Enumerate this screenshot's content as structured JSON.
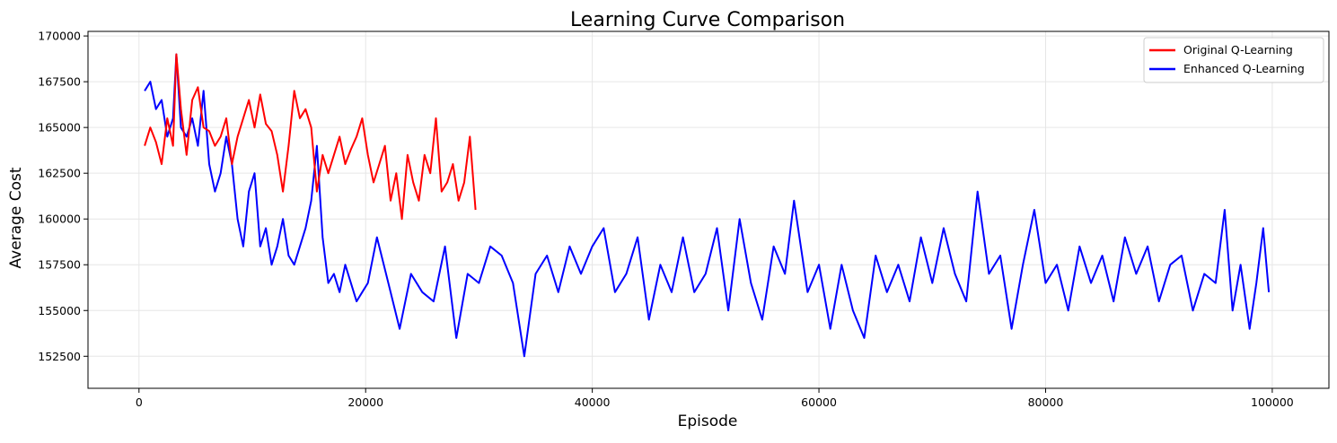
{
  "chart_data": {
    "type": "line",
    "title": "Learning Curve Comparison",
    "xlabel": "Episode",
    "ylabel": "Average Cost",
    "xlim": [
      -4500,
      105000
    ],
    "ylim": [
      150750,
      170250
    ],
    "xticks": [
      0,
      20000,
      40000,
      60000,
      80000,
      100000
    ],
    "xtick_labels": [
      "0",
      "20000",
      "40000",
      "60000",
      "80000",
      "100000"
    ],
    "yticks": [
      152500,
      155000,
      157500,
      160000,
      162500,
      165000,
      167500,
      170000
    ],
    "ytick_labels": [
      "152500",
      "155000",
      "157500",
      "160000",
      "162500",
      "165000",
      "167500",
      "170000"
    ],
    "grid": true,
    "legend_position": "top-right",
    "series": [
      {
        "name": "Original Q-Learning",
        "color": "#ff0000",
        "x": [
          500,
          1000,
          1500,
          2000,
          2500,
          3000,
          3300,
          3700,
          4200,
          4700,
          5200,
          5700,
          6200,
          6700,
          7200,
          7700,
          8200,
          8700,
          9200,
          9700,
          10200,
          10700,
          11200,
          11700,
          12200,
          12700,
          13200,
          13700,
          14200,
          14700,
          15200,
          15700,
          16200,
          16700,
          17200,
          17700,
          18200,
          18700,
          19200,
          19700,
          20200,
          20700,
          21200,
          21700,
          22200,
          22700,
          23200,
          23700,
          24200,
          24700,
          25200,
          25700,
          26200,
          26700,
          27200,
          27700,
          28200,
          28700,
          29200,
          29700
        ],
        "y": [
          164000,
          165000,
          164200,
          163000,
          165500,
          164000,
          169000,
          166000,
          163500,
          166500,
          167200,
          165000,
          164800,
          164000,
          164500,
          165500,
          163000,
          164500,
          165500,
          166500,
          165000,
          166800,
          165200,
          164800,
          163500,
          161500,
          164000,
          167000,
          165500,
          166000,
          165000,
          161500,
          163500,
          162500,
          163500,
          164500,
          163000,
          163800,
          164500,
          165500,
          163500,
          162000,
          163000,
          164000,
          161000,
          162500,
          160000,
          163500,
          162000,
          161000,
          163500,
          162500,
          165500,
          161500,
          162000,
          163000,
          161000,
          162000,
          164500,
          160500
        ]
      },
      {
        "name": "Enhanced Q-Learning",
        "color": "#0000ff",
        "x": [
          500,
          1000,
          1500,
          2000,
          2500,
          3000,
          3300,
          3700,
          4200,
          4700,
          5200,
          5700,
          6200,
          6700,
          7200,
          7700,
          8200,
          8700,
          9200,
          9700,
          10200,
          10700,
          11200,
          11700,
          12200,
          12700,
          13200,
          13700,
          14200,
          14700,
          15200,
          15700,
          16200,
          16700,
          17200,
          17700,
          18200,
          18700,
          19200,
          19700,
          20200,
          21000,
          22000,
          23000,
          24000,
          25000,
          26000,
          27000,
          28000,
          29000,
          30000,
          31000,
          32000,
          33000,
          34000,
          35000,
          36000,
          37000,
          38000,
          39000,
          40000,
          41000,
          42000,
          43000,
          44000,
          45000,
          46000,
          47000,
          48000,
          49000,
          50000,
          51000,
          52000,
          53000,
          54000,
          55000,
          56000,
          57000,
          57800,
          59000,
          60000,
          61000,
          62000,
          63000,
          64000,
          65000,
          66000,
          67000,
          68000,
          69000,
          70000,
          71000,
          72000,
          73000,
          74000,
          75000,
          76000,
          77000,
          78000,
          79000,
          80000,
          81000,
          82000,
          83000,
          84000,
          85000,
          86000,
          87000,
          88000,
          89000,
          90000,
          91000,
          92000,
          93000,
          94000,
          95000,
          95800,
          96500,
          97200,
          98000,
          98600,
          99200,
          99700
        ],
        "y": [
          167000,
          167500,
          166000,
          166500,
          164500,
          165500,
          169000,
          165000,
          164500,
          165500,
          164000,
          167000,
          163000,
          161500,
          162500,
          164500,
          163000,
          160000,
          158500,
          161500,
          162500,
          158500,
          159500,
          157500,
          158500,
          160000,
          158000,
          157500,
          158500,
          159500,
          161000,
          164000,
          159000,
          156500,
          157000,
          156000,
          157500,
          156500,
          155500,
          156000,
          156500,
          159000,
          156500,
          154000,
          157000,
          156000,
          155500,
          158500,
          153500,
          157000,
          156500,
          158500,
          158000,
          156500,
          152500,
          157000,
          158000,
          156000,
          158500,
          157000,
          158500,
          159500,
          156000,
          157000,
          159000,
          154500,
          157500,
          156000,
          159000,
          156000,
          157000,
          159500,
          155000,
          160000,
          156500,
          154500,
          158500,
          157000,
          161000,
          156000,
          157500,
          154000,
          157500,
          155000,
          153500,
          158000,
          156000,
          157500,
          155500,
          159000,
          156500,
          159500,
          157000,
          155500,
          161500,
          157000,
          158000,
          154000,
          157500,
          160500,
          156500,
          157500,
          155000,
          158500,
          156500,
          158000,
          155500,
          159000,
          157000,
          158500,
          155500,
          157500,
          158000,
          155000,
          157000,
          156500,
          160500,
          155000,
          157500,
          154000,
          156500,
          159500,
          156000
        ]
      }
    ]
  }
}
